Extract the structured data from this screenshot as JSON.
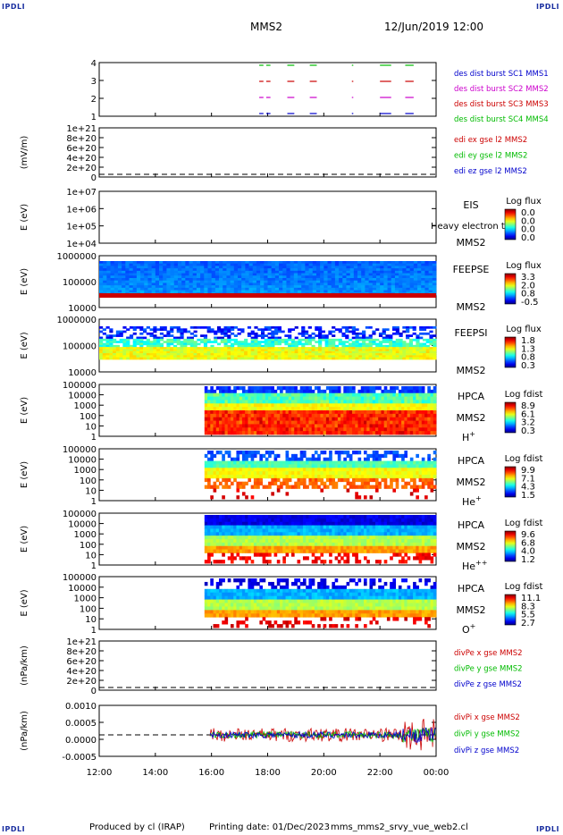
{
  "corner_label": "IPDLI",
  "header": {
    "spacecraft": "MMS2",
    "datetime": "12/Jun/2019 12:00"
  },
  "footer": {
    "producer": "Produced by cl (IRAP)",
    "printing": "Printing date: 01/Dec/2023",
    "script": "mms_mms2_srvy_vue_web2.cl"
  },
  "chart_data": {
    "type": "heatmap",
    "x_axis": {
      "ticks": [
        "12:00",
        "14:00",
        "16:00",
        "18:00",
        "20:00",
        "22:00",
        "00:00"
      ],
      "range_hours": [
        12,
        24
      ]
    },
    "panels": [
      {
        "id": "burst",
        "type": "line",
        "ylabel": "",
        "yticks": [
          "4",
          "3",
          "2",
          "1"
        ],
        "legend": [
          {
            "text": "des dist burst SC1 MMS1",
            "color": "#0000cc"
          },
          {
            "text": "des dist burst SC2 MMS2",
            "color": "#cc00cc"
          },
          {
            "text": "des dist burst SC3 MMS3",
            "color": "#cc0000"
          },
          {
            "text": "des dist burst SC4 MMS4",
            "color": "#00bb00"
          }
        ],
        "burst_intervals_hours": [
          [
            17.7,
            17.85
          ],
          [
            17.95,
            18.1
          ],
          [
            18.7,
            18.95
          ],
          [
            19.5,
            19.75
          ],
          [
            21.0,
            21.05
          ],
          [
            22.0,
            22.4
          ],
          [
            22.9,
            23.2
          ]
        ]
      },
      {
        "id": "edi",
        "type": "line",
        "ylabel": "(mV/m)",
        "yticks": [
          "1e+21",
          "8e+20",
          "6e+20",
          "4e+20",
          "2e+20",
          "0"
        ],
        "legend": [
          {
            "text": "edi ex gse l2 MMS2",
            "color": "#cc0000"
          },
          {
            "text": "edi ey gse l2 MMS2",
            "color": "#00bb00"
          },
          {
            "text": "edi ez gse l2 MMS2",
            "color": "#0000cc"
          }
        ]
      },
      {
        "id": "eis",
        "type": "heatmap",
        "ylabel": "E (eV)",
        "yticks": [
          "1e+07",
          "1e+06",
          "1e+05",
          "1e+04"
        ],
        "instrument": [
          "EIS",
          "MMS2"
        ],
        "overlay_text": "Heavy electron to",
        "colorbar": {
          "title": "Log flux",
          "ticks": [
            "0.0",
            "0.0",
            "0.0",
            "0.0"
          ]
        }
      },
      {
        "id": "feepse",
        "type": "heatmap",
        "ylabel": "E (eV)",
        "yticks": [
          "1000000",
          "100000",
          "10000"
        ],
        "instrument": [
          "FEEPSE",
          "MMS2"
        ],
        "colorbar": {
          "title": "Log flux",
          "ticks": [
            "3.3",
            "2.0",
            "0.8",
            "-0.5"
          ]
        }
      },
      {
        "id": "feepsi",
        "type": "heatmap",
        "ylabel": "E (eV)",
        "yticks": [
          "1000000",
          "100000",
          "10000"
        ],
        "instrument": [
          "FEEPSI",
          "MMS2"
        ],
        "colorbar": {
          "title": "Log flux",
          "ticks": [
            "1.8",
            "1.3",
            "0.8",
            "0.3"
          ]
        }
      },
      {
        "id": "hpca_h",
        "type": "heatmap",
        "ylabel": "E (eV)",
        "yticks": [
          "100000",
          "10000",
          "1000",
          "100",
          "10",
          "1"
        ],
        "instrument": [
          "HPCA",
          "MMS2"
        ],
        "species": {
          "base": "H",
          "sup": "+"
        },
        "data_start_hours": 15.75,
        "colorbar": {
          "title": "Log fdist",
          "ticks": [
            "8.9",
            "6.1",
            "3.2",
            "0.3"
          ]
        }
      },
      {
        "id": "hpca_he1",
        "type": "heatmap",
        "ylabel": "E (eV)",
        "yticks": [
          "100000",
          "10000",
          "1000",
          "100",
          "10",
          "1"
        ],
        "instrument": [
          "HPCA",
          "MMS2"
        ],
        "species": {
          "base": "He",
          "sup": "+"
        },
        "data_start_hours": 15.75,
        "colorbar": {
          "title": "Log fdist",
          "ticks": [
            "9.9",
            "7.1",
            "4.3",
            "1.5"
          ]
        }
      },
      {
        "id": "hpca_he2",
        "type": "heatmap",
        "ylabel": "E (eV)",
        "yticks": [
          "100000",
          "10000",
          "1000",
          "100",
          "10",
          "1"
        ],
        "instrument": [
          "HPCA",
          "MMS2"
        ],
        "species": {
          "base": "He",
          "sup": "++"
        },
        "data_start_hours": 15.75,
        "colorbar": {
          "title": "Log fdist",
          "ticks": [
            "9.6",
            "6.8",
            "4.0",
            "1.2"
          ]
        }
      },
      {
        "id": "hpca_o",
        "type": "heatmap",
        "ylabel": "E (eV)",
        "yticks": [
          "100000",
          "10000",
          "1000",
          "100",
          "10",
          "1"
        ],
        "instrument": [
          "HPCA",
          "MMS2"
        ],
        "species": {
          "base": "O",
          "sup": "+"
        },
        "data_start_hours": 15.75,
        "colorbar": {
          "title": "Log fdist",
          "ticks": [
            "11.1",
            "8.3",
            "5.5",
            "2.7"
          ]
        }
      },
      {
        "id": "divpe",
        "type": "line",
        "ylabel": "(nPa/km)",
        "yticks": [
          "1e+21",
          "8e+20",
          "6e+20",
          "4e+20",
          "2e+20",
          "0"
        ],
        "legend": [
          {
            "text": "divPe x gse MMS2",
            "color": "#cc0000"
          },
          {
            "text": "divPe y gse MMS2",
            "color": "#00bb00"
          },
          {
            "text": "divPe z gse MMS2",
            "color": "#0000cc"
          }
        ]
      },
      {
        "id": "divpi",
        "type": "line",
        "ylabel": "(nPa/km)",
        "yticks": [
          "0.0010",
          "0.0005",
          "0.0000",
          "-0.0005"
        ],
        "ylim": [
          -0.0008,
          0.0011
        ],
        "data_start_hours": 15.95,
        "legend": [
          {
            "text": "divPi x gse MMS2",
            "color": "#cc0000"
          },
          {
            "text": "divPi y gse MMS2",
            "color": "#00bb00"
          },
          {
            "text": "divPi z gse MMS2",
            "color": "#0000cc"
          }
        ]
      }
    ]
  }
}
